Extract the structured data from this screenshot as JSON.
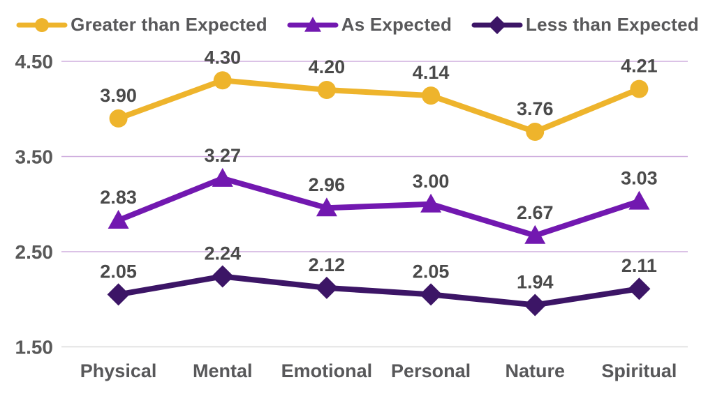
{
  "chart_data": {
    "type": "line",
    "title": "",
    "categories": [
      "Physical",
      "Mental",
      "Emotional",
      "Personal",
      "Nature",
      "Spiritual"
    ],
    "series": [
      {
        "name": "Greater than Expected",
        "marker": "circle",
        "color": "#EEB42C",
        "values": [
          3.9,
          4.3,
          4.2,
          4.14,
          3.76,
          4.21
        ],
        "labels": [
          "3.90",
          "4.30",
          "4.20",
          "4.14",
          "3.76",
          "4.21"
        ]
      },
      {
        "name": "As Expected",
        "marker": "triangle",
        "color": "#7218B0",
        "values": [
          2.83,
          3.27,
          2.96,
          3.0,
          2.67,
          3.03
        ],
        "labels": [
          "2.83",
          "3.27",
          "2.96",
          "3.00",
          "2.67",
          "3.03"
        ]
      },
      {
        "name": "Less than Expected",
        "marker": "diamond",
        "color": "#3C1566",
        "values": [
          2.05,
          2.24,
          2.12,
          2.05,
          1.94,
          2.11
        ],
        "labels": [
          "2.05",
          "2.24",
          "2.12",
          "2.05",
          "1.94",
          "2.11"
        ]
      }
    ],
    "y_axis": {
      "min": 1.5,
      "max": 4.5,
      "ticks": [
        {
          "value": 4.5,
          "label": "4.50"
        },
        {
          "value": 3.5,
          "label": "3.50"
        },
        {
          "value": 2.5,
          "label": "2.50"
        },
        {
          "value": 1.5,
          "label": "1.50"
        }
      ]
    },
    "legend_position": "top",
    "grid": true,
    "colors": {
      "grid_line": "#cfaede",
      "baseline": "#d9d9d9",
      "axis_text": "#595959",
      "data_label_text": "#4a4a4a",
      "legend_text": "#58585a",
      "background": "#ffffff"
    }
  }
}
